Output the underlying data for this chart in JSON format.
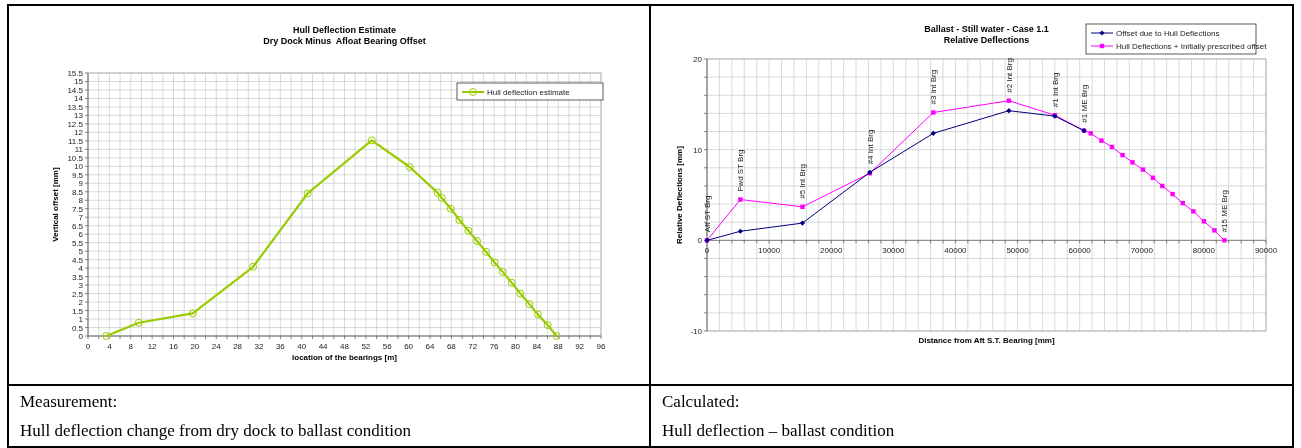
{
  "chart_data": [
    {
      "type": "line",
      "title": "Hull Deflection Estimate",
      "subtitle": "Dry Dock Minus  Afloat Bearing Offset",
      "xlabel": "location of the bearings [m]",
      "ylabel": "Vertical offset [mm]",
      "xlim": [
        0,
        96
      ],
      "xticks": [
        0,
        {
          "value": 2,
          "label": null
        },
        4,
        {
          "value": 6,
          "label": null
        },
        8,
        {
          "value": 10,
          "label": null
        },
        12,
        {
          "value": 14,
          "label": null
        },
        16,
        {
          "value": 18,
          "label": null
        },
        20,
        {
          "value": 22,
          "label": null
        },
        24,
        {
          "value": 26,
          "label": null
        },
        28,
        {
          "value": 30,
          "label": null
        },
        32,
        {
          "value": 34,
          "label": null
        },
        36,
        {
          "value": 38,
          "label": null
        },
        40,
        {
          "value": 42,
          "label": null
        },
        44,
        {
          "value": 46,
          "label": null
        },
        48,
        {
          "value": 50,
          "label": null
        },
        52,
        {
          "value": 54,
          "label": null
        },
        56,
        {
          "value": 58,
          "label": null
        },
        60,
        {
          "value": 62,
          "label": null
        },
        64,
        {
          "value": 66,
          "label": null
        },
        68,
        {
          "value": 70,
          "label": null
        },
        72,
        {
          "value": 74,
          "label": null
        },
        76,
        {
          "value": 78,
          "label": null
        },
        80,
        {
          "value": 82,
          "label": null
        },
        84,
        {
          "value": 86,
          "label": null
        },
        88,
        {
          "value": 90,
          "label": null
        },
        92,
        {
          "value": 94,
          "label": null
        },
        96
      ],
      "ylim": [
        0,
        15.5
      ],
      "yticks": [
        0,
        0.5,
        1,
        1.5,
        2,
        2.5,
        3,
        3.5,
        4,
        4.5,
        5,
        5.5,
        6,
        6.5,
        7,
        7.5,
        8,
        8.5,
        9,
        9.5,
        10,
        10.5,
        11,
        11.5,
        12,
        12.5,
        13,
        13.5,
        14,
        14.5,
        15,
        15.5
      ],
      "grid": true,
      "legend": "top right",
      "marker": "circle",
      "series": [
        {
          "name": "Hull deflection estimate",
          "color": "#99cc00",
          "x": [
            3.4,
            9.5,
            19.6,
            30.9,
            41.1,
            53.1,
            60.2,
            65.4,
            66.2,
            67.9,
            69.5,
            71.2,
            72.8,
            74.5,
            76.1,
            77.6,
            79.3,
            80.9,
            82.6,
            84.2,
            86,
            87.7
          ],
          "values": [
            0,
            0.78,
            1.33,
            4.08,
            8.4,
            11.53,
            9.96,
            8.45,
            8.14,
            7.5,
            6.84,
            6.2,
            5.6,
            4.96,
            4.33,
            3.78,
            3.14,
            2.5,
            1.88,
            1.27,
            0.65,
            0
          ]
        }
      ],
      "annotations": [
        "Measurement:",
        "Hull deflection change from dry dock to ballast condition"
      ]
    },
    {
      "type": "line",
      "title": "Ballast - Still water - Case 1.1",
      "subtitle": "Relative Deflections",
      "xlabel": "Distance from Aft S.T. Bearing [mm]",
      "ylabel": "Relative Deflections [mm]",
      "xlim": [
        0,
        90000
      ],
      "xticks": [
        0,
        {
          "value": 2000,
          "label": null
        },
        {
          "value": 4000,
          "label": null
        },
        {
          "value": 6000,
          "label": null
        },
        {
          "value": 8000,
          "label": null
        },
        10000,
        {
          "value": 12000,
          "label": null
        },
        {
          "value": 14000,
          "label": null
        },
        {
          "value": 16000,
          "label": null
        },
        {
          "value": 18000,
          "label": null
        },
        20000,
        {
          "value": 22000,
          "label": null
        },
        {
          "value": 24000,
          "label": null
        },
        {
          "value": 26000,
          "label": null
        },
        {
          "value": 28000,
          "label": null
        },
        30000,
        {
          "value": 32000,
          "label": null
        },
        {
          "value": 34000,
          "label": null
        },
        {
          "value": 36000,
          "label": null
        },
        {
          "value": 38000,
          "label": null
        },
        40000,
        {
          "value": 42000,
          "label": null
        },
        {
          "value": 44000,
          "label": null
        },
        {
          "value": 46000,
          "label": null
        },
        {
          "value": 48000,
          "label": null
        },
        50000,
        {
          "value": 52000,
          "label": null
        },
        {
          "value": 54000,
          "label": null
        },
        {
          "value": 56000,
          "label": null
        },
        {
          "value": 58000,
          "label": null
        },
        60000,
        {
          "value": 62000,
          "label": null
        },
        {
          "value": 64000,
          "label": null
        },
        {
          "value": 66000,
          "label": null
        },
        {
          "value": 68000,
          "label": null
        },
        70000,
        {
          "value": 72000,
          "label": null
        },
        {
          "value": 74000,
          "label": null
        },
        {
          "value": 76000,
          "label": null
        },
        {
          "value": 78000,
          "label": null
        },
        80000,
        {
          "value": 82000,
          "label": null
        },
        {
          "value": 84000,
          "label": null
        },
        {
          "value": 86000,
          "label": null
        },
        {
          "value": 88000,
          "label": null
        },
        90000
      ],
      "ylim": [
        -10,
        20
      ],
      "yticks": [
        -10,
        {
          "value": -8,
          "label": null
        },
        {
          "value": -6,
          "label": null
        },
        {
          "value": -4,
          "label": null
        },
        {
          "value": -2,
          "label": null
        },
        0,
        {
          "value": 2,
          "label": null
        },
        {
          "value": 4,
          "label": null
        },
        {
          "value": 6,
          "label": null
        },
        {
          "value": 8,
          "label": null
        },
        10,
        {
          "value": 12,
          "label": null
        },
        {
          "value": 14,
          "label": null
        },
        {
          "value": 16,
          "label": null
        },
        {
          "value": 18,
          "label": null
        },
        20
      ],
      "grid": true,
      "legend": "top right",
      "series": [
        {
          "name": "Offset due to Hull Deflections",
          "color": "#000080",
          "marker": "diamond",
          "x": [
            0,
            5370,
            15370,
            26220,
            36440,
            48600,
            56000,
            60700
          ],
          "values": [
            0,
            1.0,
            1.9,
            7.5,
            11.8,
            14.3,
            13.7,
            12.1
          ]
        },
        {
          "name": "Hull Deflections + Initially prescribed offset",
          "color": "#ff00ff",
          "marker": "square",
          "x": [
            0,
            5370,
            15370,
            26220,
            36440,
            48600,
            56000,
            60700,
            61800,
            63500,
            65200,
            66900,
            68500,
            70200,
            71800,
            73300,
            74960,
            76600,
            78300,
            80000,
            81700,
            83300
          ],
          "values": [
            0,
            4.5,
            3.7,
            7.4,
            14.1,
            15.4,
            13.8,
            12.1,
            11.8,
            11.0,
            10.3,
            9.4,
            8.6,
            7.8,
            6.9,
            6.0,
            5.1,
            4.1,
            3.2,
            2.1,
            1.1,
            0
          ]
        }
      ],
      "annotations": [
        {
          "text": "Aft ST Brg",
          "x": 0,
          "y": 0
        },
        {
          "text": "Fwd ST Brg",
          "x": 5370,
          "y": 4.5
        },
        {
          "text": "#5 Int Brg",
          "x": 15370,
          "y": 3.7
        },
        {
          "text": "#4 Int Brg",
          "x": 26220,
          "y": 7.5
        },
        {
          "text": "#3 Int Brg",
          "x": 36440,
          "y": 14.1
        },
        {
          "text": "#2 Int Brg",
          "x": 48600,
          "y": 15.4
        },
        {
          "text": "#1 Int Brg",
          "x": 56000,
          "y": 13.8
        },
        {
          "text": "#1 ME Brg",
          "x": 60700,
          "y": 12.1
        },
        {
          "text": "#15 ME Brg",
          "x": 83300,
          "y": 0
        },
        "Calculated:",
        "Hull deflection – ballast condition"
      ]
    }
  ]
}
